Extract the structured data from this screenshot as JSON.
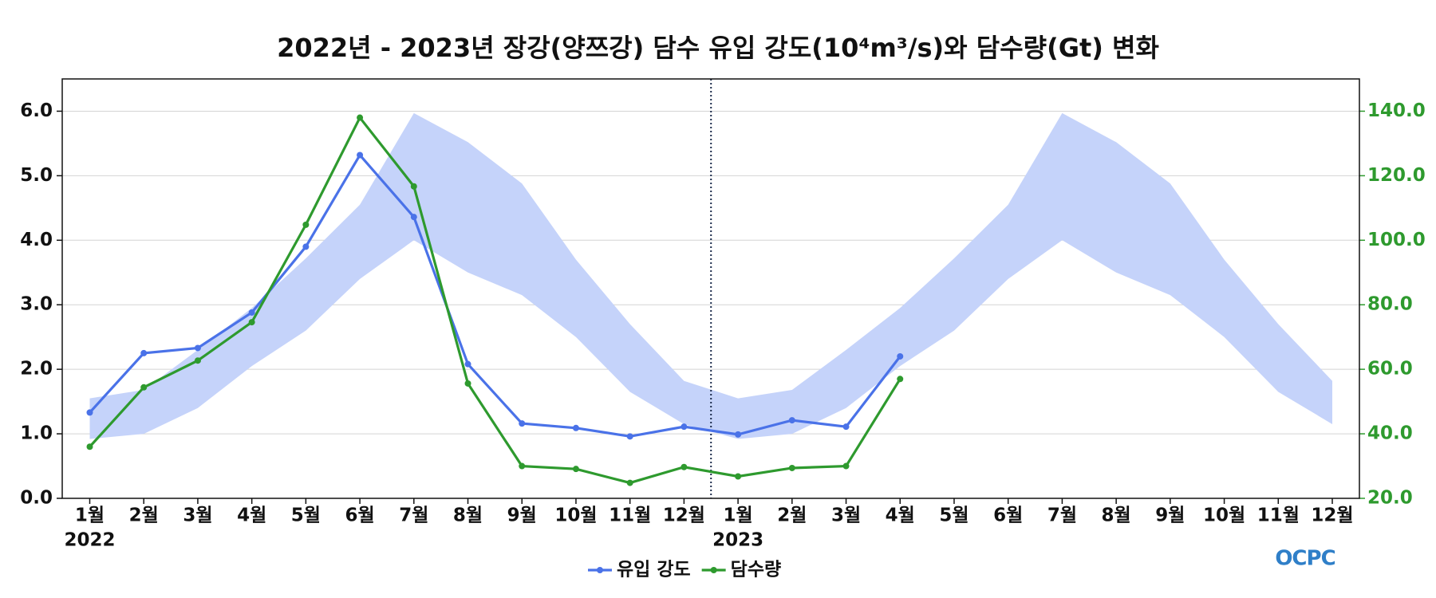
{
  "chart_data": {
    "type": "line",
    "title": "2022년 - 2023년 장강(양쯔강) 담수 유입 강도(10⁴m³/s)와 담수량(Gt) 변화",
    "categories": [
      "1월",
      "2월",
      "3월",
      "4월",
      "5월",
      "6월",
      "7월",
      "8월",
      "9월",
      "10월",
      "11월",
      "12월",
      "1월",
      "2월",
      "3월",
      "4월",
      "5월",
      "6월",
      "7월",
      "8월",
      "9월",
      "10월",
      "11월",
      "12월"
    ],
    "year_labels": [
      "2022",
      "2023"
    ],
    "series": [
      {
        "name": "유입 강도",
        "color": "#4a72e8",
        "axis": "y",
        "values": [
          1.33,
          2.25,
          2.33,
          2.88,
          3.9,
          5.32,
          4.36,
          2.08,
          1.16,
          1.09,
          0.96,
          1.11,
          0.99,
          1.21,
          1.11,
          2.2,
          null,
          null,
          null,
          null,
          null,
          null,
          null,
          null
        ]
      },
      {
        "name": "담수량",
        "color": "#2e9a2e",
        "axis": "y2",
        "values": [
          36,
          54.4,
          62.7,
          74.6,
          104.8,
          138,
          116.7,
          55.6,
          30,
          29.1,
          24.8,
          29.7,
          26.8,
          29.4,
          30,
          57,
          null,
          null,
          null,
          null,
          null,
          null,
          null,
          null
        ]
      }
    ],
    "band": {
      "color": "#c5d3fa",
      "upper": [
        1.55,
        1.68,
        2.3,
        2.95,
        3.72,
        4.55,
        5.97,
        5.52,
        4.88,
        3.7,
        2.7,
        1.82,
        1.55,
        1.68,
        2.3,
        2.95,
        3.72,
        4.55,
        5.97,
        5.52,
        4.88,
        3.7,
        2.7,
        1.82
      ],
      "lower": [
        0.92,
        1.0,
        1.4,
        2.05,
        2.6,
        3.4,
        4.0,
        3.5,
        3.15,
        2.5,
        1.65,
        1.15,
        0.92,
        1.0,
        1.4,
        2.05,
        2.6,
        3.4,
        4.0,
        3.5,
        3.15,
        2.5,
        1.65,
        1.15
      ]
    },
    "ylim": [
      0,
      6.5
    ],
    "yticks": [
      {
        "value": 0,
        "label": "0.0"
      },
      {
        "value": 1,
        "label": "1.0"
      },
      {
        "value": 2,
        "label": "2.0"
      },
      {
        "value": 3,
        "label": "3.0"
      },
      {
        "value": 4,
        "label": "4.0"
      },
      {
        "value": 5,
        "label": "5.0"
      },
      {
        "value": 6,
        "label": "6.0"
      }
    ],
    "y2lim": [
      20,
      150
    ],
    "y2ticks": [
      {
        "value": 20,
        "label": "20.0"
      },
      {
        "value": 40,
        "label": "40.0"
      },
      {
        "value": 60,
        "label": "60.0"
      },
      {
        "value": 80,
        "label": "80.0"
      },
      {
        "value": 100,
        "label": "100.0"
      },
      {
        "value": 120,
        "label": "120.0"
      },
      {
        "value": 140,
        "label": "140.0"
      }
    ],
    "y2color": "#2e9a2e",
    "grid": true,
    "logo": "OCPC"
  }
}
